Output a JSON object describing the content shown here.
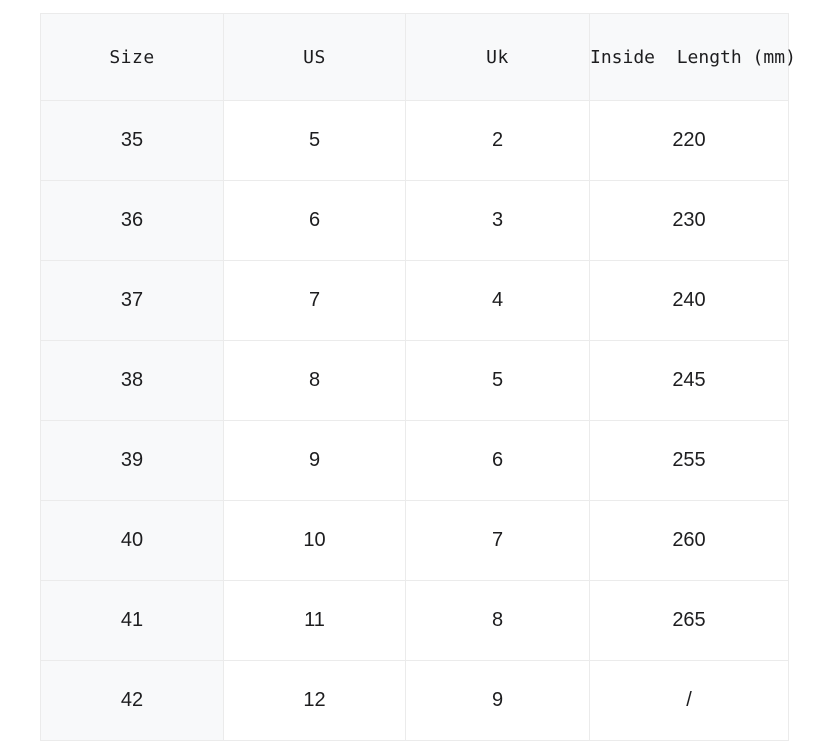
{
  "colors": {
    "header_bg": "#f8f9fa",
    "row_head_bg": "#f8f9fa",
    "cell_bg": "#ffffff",
    "border": "#ebebeb",
    "text": "#1d1d1f",
    "page_bg": "#ffffff"
  },
  "chart_data": {
    "type": "table",
    "columns": [
      {
        "key": "size",
        "label": "Size"
      },
      {
        "key": "us",
        "label": "US"
      },
      {
        "key": "uk",
        "label": "Uk"
      },
      {
        "key": "inside_length_mm",
        "label": "Inside  Length (mm)"
      }
    ],
    "rows": [
      {
        "size": "35",
        "us": "5",
        "uk": "2",
        "inside_length_mm": "220"
      },
      {
        "size": "36",
        "us": "6",
        "uk": "3",
        "inside_length_mm": "230"
      },
      {
        "size": "37",
        "us": "7",
        "uk": "4",
        "inside_length_mm": "240"
      },
      {
        "size": "38",
        "us": "8",
        "uk": "5",
        "inside_length_mm": "245"
      },
      {
        "size": "39",
        "us": "9",
        "uk": "6",
        "inside_length_mm": "255"
      },
      {
        "size": "40",
        "us": "10",
        "uk": "7",
        "inside_length_mm": "260"
      },
      {
        "size": "41",
        "us": "11",
        "uk": "8",
        "inside_length_mm": "265"
      },
      {
        "size": "42",
        "us": "12",
        "uk": "9",
        "inside_length_mm": "/"
      }
    ]
  }
}
